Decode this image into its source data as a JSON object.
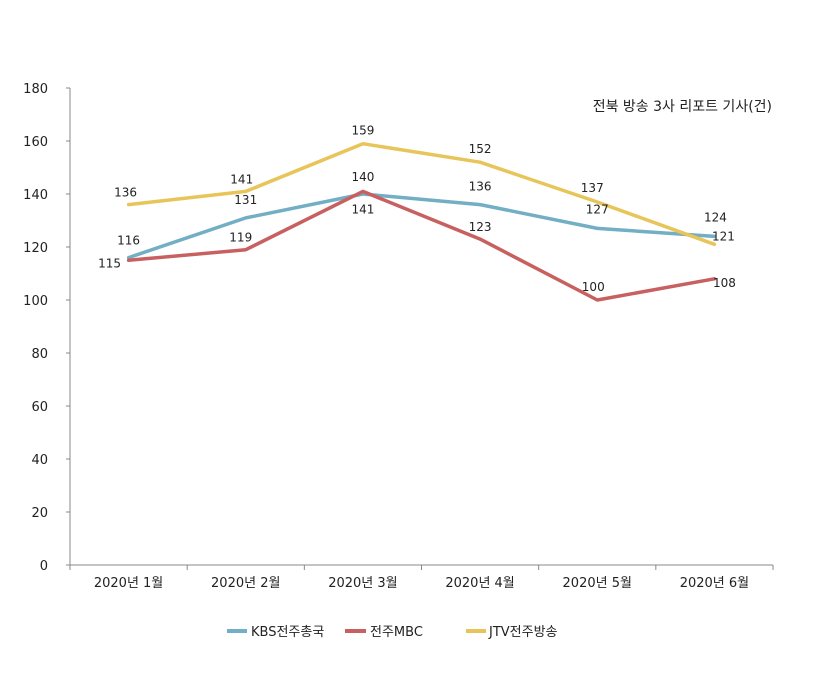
{
  "chart_data": {
    "type": "line",
    "title": "",
    "annotation": "전북 방송 3사 리포트 기사(건)",
    "xlabel": "",
    "ylabel": "",
    "categories": [
      "2020년 1월",
      "2020년 2월",
      "2020년 3월",
      "2020년 4월",
      "2020년 5월",
      "2020년 6월"
    ],
    "ylim": [
      0,
      180
    ],
    "yticks": [
      "0",
      "20",
      "40",
      "60",
      "80",
      "100",
      "120",
      "140",
      "160",
      "180"
    ],
    "grid": false,
    "legend_position": "bottom",
    "series": [
      {
        "name": "KBS전주총국",
        "color": "#72aec4",
        "values": [
          116,
          131,
          140,
          136,
          127,
          124
        ]
      },
      {
        "name": "전주MBC",
        "color": "#c86060",
        "values": [
          115,
          119,
          141,
          123,
          100,
          108
        ]
      },
      {
        "name": "JTV전주방송",
        "color": "#e8c55a",
        "values": [
          136,
          141,
          159,
          152,
          137,
          121
        ]
      }
    ]
  }
}
